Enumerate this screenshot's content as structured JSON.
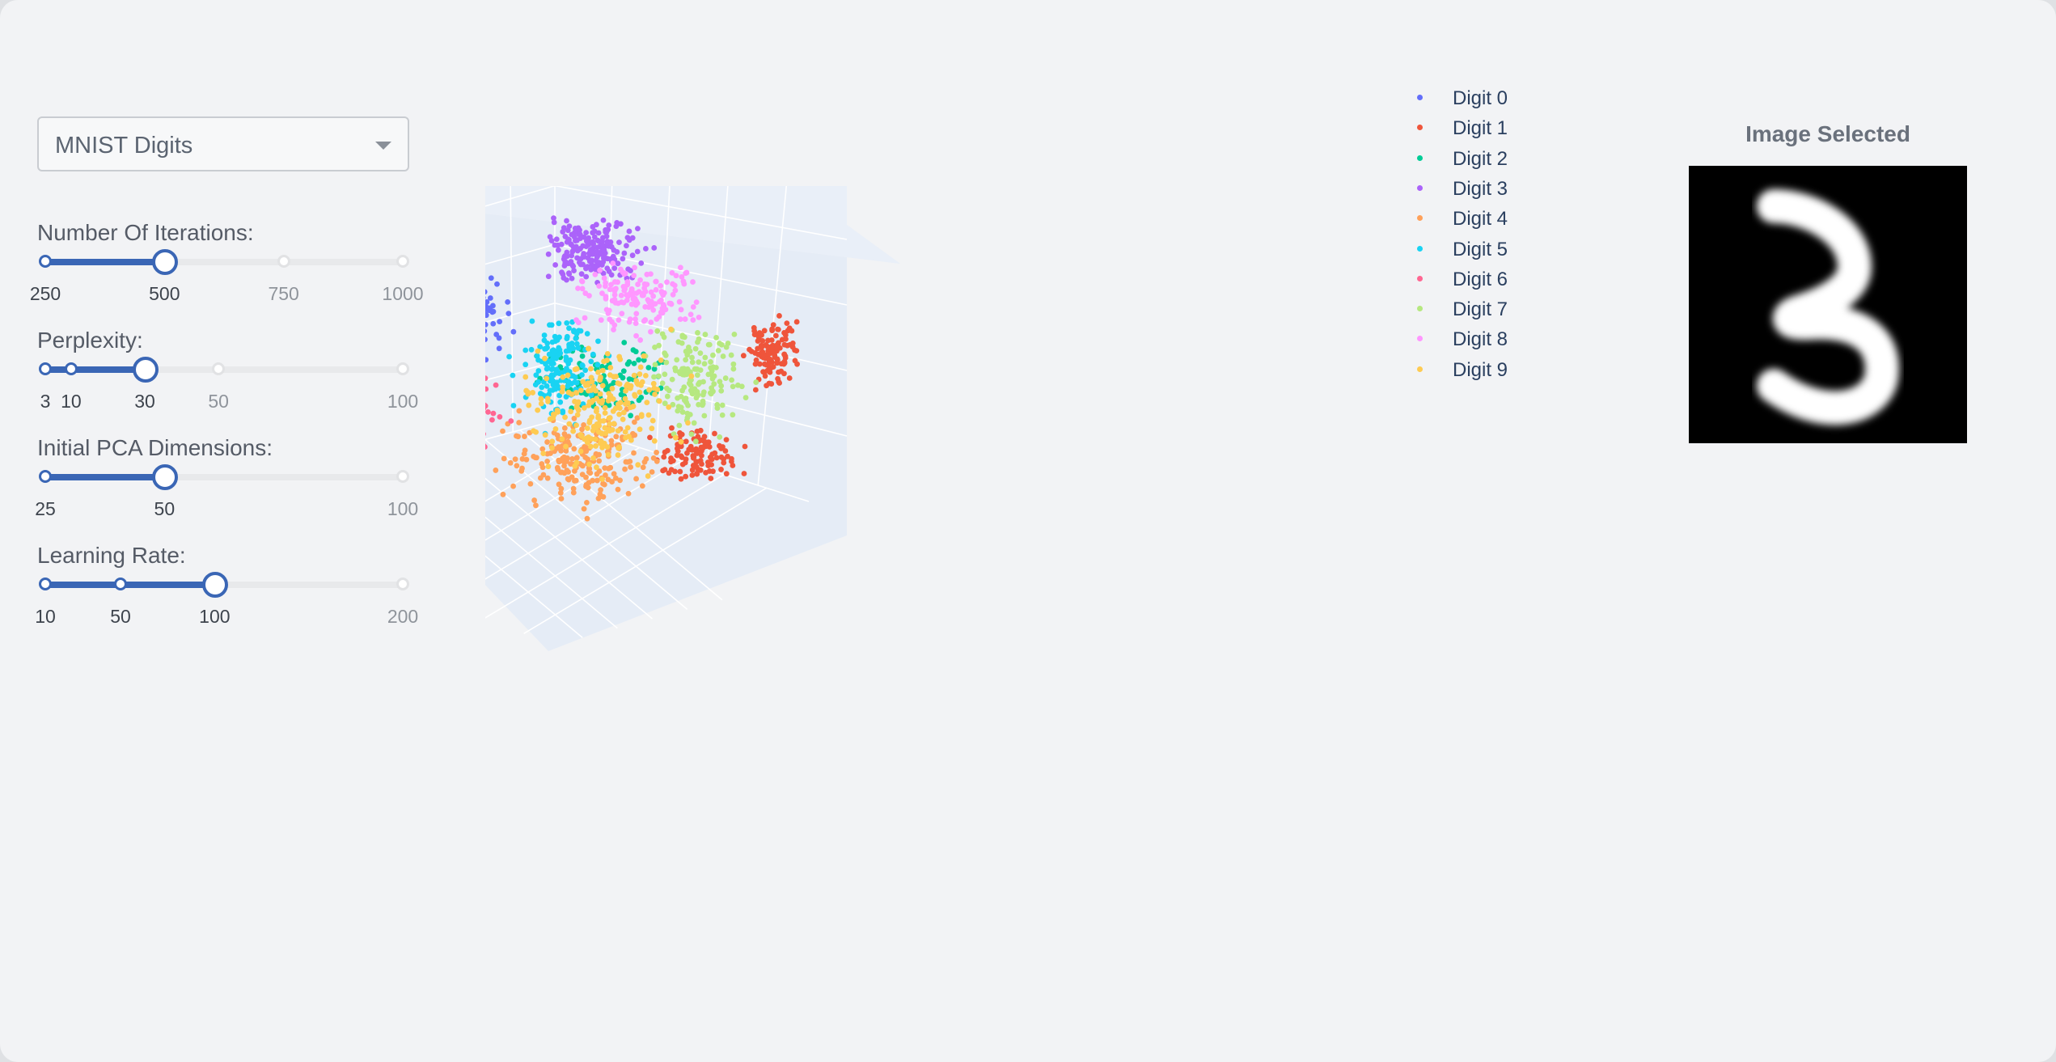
{
  "dataset_dropdown": {
    "value": "MNIST Digits"
  },
  "sliders": [
    {
      "label": "Number Of Iterations:",
      "min": 250,
      "max": 1000,
      "value": 500,
      "marks": [
        {
          "v": 250,
          "t": "250"
        },
        {
          "v": 500,
          "t": "500"
        },
        {
          "v": 750,
          "t": "750"
        },
        {
          "v": 1000,
          "t": "1000"
        }
      ]
    },
    {
      "label": "Perplexity:",
      "min": 3,
      "max": 100,
      "value": 30,
      "marks": [
        {
          "v": 3,
          "t": "3"
        },
        {
          "v": 10,
          "t": "10"
        },
        {
          "v": 30,
          "t": "30"
        },
        {
          "v": 50,
          "t": "50"
        },
        {
          "v": 100,
          "t": "100"
        }
      ]
    },
    {
      "label": "Initial PCA Dimensions:",
      "min": 25,
      "max": 100,
      "value": 50,
      "marks": [
        {
          "v": 25,
          "t": "25"
        },
        {
          "v": 50,
          "t": "50"
        },
        {
          "v": 100,
          "t": "100"
        }
      ]
    },
    {
      "label": "Learning Rate:",
      "min": 10,
      "max": 200,
      "value": 100,
      "marks": [
        {
          "v": 10,
          "t": "10"
        },
        {
          "v": 50,
          "t": "50"
        },
        {
          "v": 100,
          "t": "100"
        },
        {
          "v": 200,
          "t": "200"
        }
      ]
    }
  ],
  "legend": [
    {
      "label": "Digit 0",
      "color": "#636efa"
    },
    {
      "label": "Digit 1",
      "color": "#ef553b"
    },
    {
      "label": "Digit 2",
      "color": "#00cc96"
    },
    {
      "label": "Digit 3",
      "color": "#ab63fa"
    },
    {
      "label": "Digit 4",
      "color": "#ffa15a"
    },
    {
      "label": "Digit 5",
      "color": "#19d3f3"
    },
    {
      "label": "Digit 6",
      "color": "#ff6692"
    },
    {
      "label": "Digit 7",
      "color": "#b6e880"
    },
    {
      "label": "Digit 8",
      "color": "#ff97ff"
    },
    {
      "label": "Digit 9",
      "color": "#fecb52"
    }
  ],
  "image_panel": {
    "title": "Image Selected",
    "digit_shown": "3"
  },
  "chart_data": {
    "type": "scatter",
    "dimensions": 3,
    "series": [
      {
        "name": "Digit 0",
        "approx_centroid": [
          -35,
          25,
          10
        ]
      },
      {
        "name": "Digit 1",
        "approx_centroid": [
          40,
          -10,
          5
        ]
      },
      {
        "name": "Digit 2",
        "approx_centroid": [
          0,
          -5,
          0
        ]
      },
      {
        "name": "Digit 3",
        "approx_centroid": [
          5,
          35,
          -5
        ]
      },
      {
        "name": "Digit 4",
        "approx_centroid": [
          -5,
          -25,
          0
        ]
      },
      {
        "name": "Digit 5",
        "approx_centroid": [
          -5,
          5,
          5
        ]
      },
      {
        "name": "Digit 6",
        "approx_centroid": [
          -40,
          -15,
          10
        ]
      },
      {
        "name": "Digit 7",
        "approx_centroid": [
          25,
          -15,
          -5
        ]
      },
      {
        "name": "Digit 8",
        "approx_centroid": [
          20,
          25,
          -10
        ]
      },
      {
        "name": "Digit 9",
        "approx_centroid": [
          5,
          -10,
          0
        ]
      }
    ],
    "legend_position": "top-right",
    "grid": true
  }
}
